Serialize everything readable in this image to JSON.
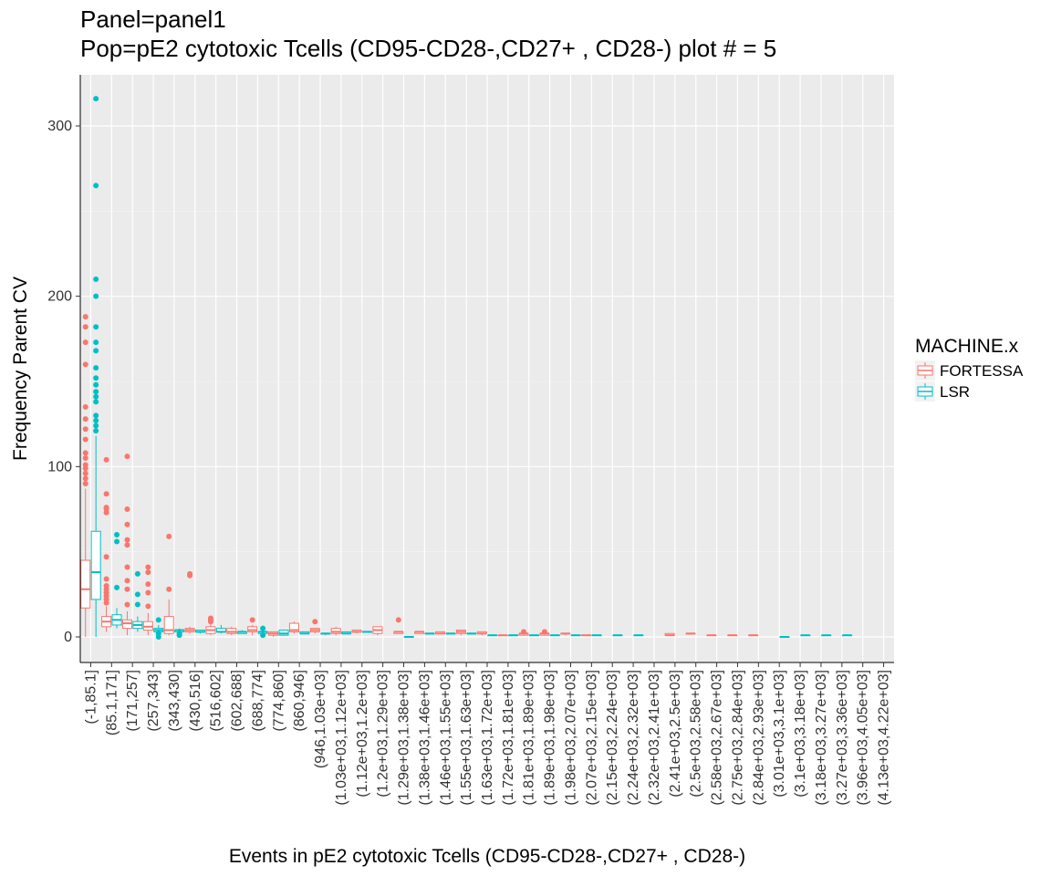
{
  "chart_data": {
    "type": "boxplot",
    "title_line1": "Panel=panel1",
    "title_line2": "Pop=pE2 cytotoxic Tcells (CD95-CD28-,CD27+ , CD28-) plot # = 5",
    "xlabel": "Events in pE2 cytotoxic Tcells (CD95-CD28-,CD27+ , CD28-)",
    "ylabel": "Frequency Parent CV",
    "ylim": [
      -15,
      330
    ],
    "y_ticks": [
      0,
      100,
      200,
      300
    ],
    "grid": true,
    "legend": {
      "title": "MACHINE.x",
      "position": "right",
      "entries": [
        {
          "name": "FORTESSA",
          "color": "#F8766D"
        },
        {
          "name": "LSR",
          "color": "#00BFC4"
        }
      ]
    },
    "categories": [
      "(-1,85.1]",
      "(85.1,171]",
      "(171,257]",
      "(257,343]",
      "(343,430]",
      "(430,516]",
      "(516,602]",
      "(602,688]",
      "(688,774]",
      "(774,860]",
      "(860,946]",
      "(946,1.03e+03]",
      "(1.03e+03,1.12e+03]",
      "(1.12e+03,1.2e+03]",
      "(1.2e+03,1.29e+03]",
      "(1.29e+03,1.38e+03]",
      "(1.38e+03,1.46e+03]",
      "(1.46e+03,1.55e+03]",
      "(1.55e+03,1.63e+03]",
      "(1.63e+03,1.72e+03]",
      "(1.72e+03,1.81e+03]",
      "(1.81e+03,1.89e+03]",
      "(1.89e+03,1.98e+03]",
      "(1.98e+03,2.07e+03]",
      "(2.07e+03,2.15e+03]",
      "(2.15e+03,2.24e+03]",
      "(2.24e+03,2.32e+03]",
      "(2.32e+03,2.41e+03]",
      "(2.41e+03,2.5e+03]",
      "(2.5e+03,2.58e+03]",
      "(2.58e+03,2.67e+03]",
      "(2.75e+03,2.84e+03]",
      "(2.84e+03,2.93e+03]",
      "(3.01e+03,3.1e+03]",
      "(3.1e+03,3.18e+03]",
      "(3.18e+03,3.27e+03]",
      "(3.27e+03,3.36e+03]",
      "(3.96e+03,4.05e+03]",
      "(4.13e+03,4.22e+03]"
    ],
    "series": [
      {
        "name": "FORTESSA",
        "color": "#F8766D",
        "boxes": [
          {
            "cat": 0,
            "min": 0,
            "q1": 17,
            "median": 28,
            "q3": 45,
            "max": 87,
            "outliers": [
              90,
              93,
              96,
              99,
              101,
              105,
              108,
              116,
              122,
              128,
              135,
              160,
              173,
              182,
              188
            ]
          },
          {
            "cat": 1,
            "min": 3,
            "q1": 6,
            "median": 9,
            "q3": 12,
            "max": 18,
            "outliers": [
              20,
              22,
              24,
              26,
              28,
              30,
              34,
              47,
              73,
              75,
              76,
              84,
              104
            ]
          },
          {
            "cat": 2,
            "min": 1,
            "q1": 5,
            "median": 8,
            "q3": 10,
            "max": 15,
            "outliers": [
              19,
              28,
              33,
              41,
              54,
              57,
              66,
              75,
              106
            ]
          },
          {
            "cat": 3,
            "min": 1,
            "q1": 4,
            "median": 6,
            "q3": 9,
            "max": 14,
            "outliers": [
              18,
              26,
              31,
              38,
              41
            ]
          },
          {
            "cat": 4,
            "min": 1,
            "q1": 2,
            "median": 4,
            "q3": 12,
            "max": 22,
            "outliers": [
              28,
              59
            ]
          },
          {
            "cat": 5,
            "min": 2,
            "q1": 3,
            "median": 4,
            "q3": 5,
            "max": 6,
            "outliers": [
              36,
              37
            ]
          },
          {
            "cat": 6,
            "min": 1,
            "q1": 2,
            "median": 4,
            "q3": 6,
            "max": 8,
            "outliers": [
              9,
              10,
              11
            ]
          },
          {
            "cat": 7,
            "min": 1,
            "q1": 2,
            "median": 3,
            "q3": 5,
            "max": 6,
            "outliers": []
          },
          {
            "cat": 8,
            "min": 1,
            "q1": 3,
            "median": 4,
            "q3": 6,
            "max": 7,
            "outliers": [
              10
            ]
          },
          {
            "cat": 9,
            "min": 0,
            "q1": 1,
            "median": 2,
            "q3": 3,
            "max": 3,
            "outliers": []
          },
          {
            "cat": 10,
            "min": 2,
            "q1": 3,
            "median": 4,
            "q3": 8,
            "max": 9,
            "outliers": []
          },
          {
            "cat": 11,
            "min": 2,
            "q1": 3,
            "median": 4,
            "q3": 5,
            "max": 5,
            "outliers": [
              9
            ]
          },
          {
            "cat": 12,
            "min": 1,
            "q1": 2,
            "median": 3,
            "q3": 5,
            "max": 6,
            "outliers": []
          },
          {
            "cat": 13,
            "min": 2,
            "q1": 3,
            "median": 3,
            "q3": 4,
            "max": 4,
            "outliers": []
          },
          {
            "cat": 14,
            "min": 1,
            "q1": 2,
            "median": 4,
            "q3": 6,
            "max": 6,
            "outliers": []
          },
          {
            "cat": 15,
            "min": 2,
            "q1": 2,
            "median": 3,
            "q3": 3,
            "max": 3,
            "outliers": [
              10
            ]
          },
          {
            "cat": 16,
            "min": 2,
            "q1": 2,
            "median": 3,
            "q3": 3,
            "max": 3,
            "outliers": []
          },
          {
            "cat": 17,
            "min": 2,
            "q1": 2,
            "median": 2,
            "q3": 3,
            "max": 3,
            "outliers": []
          },
          {
            "cat": 18,
            "min": 1,
            "q1": 2,
            "median": 3,
            "q3": 4,
            "max": 4,
            "outliers": []
          },
          {
            "cat": 19,
            "min": 1,
            "q1": 2,
            "median": 2,
            "q3": 3,
            "max": 3,
            "outliers": []
          },
          {
            "cat": 20,
            "min": 1,
            "q1": 1,
            "median": 1,
            "q3": 1,
            "max": 1,
            "outliers": []
          },
          {
            "cat": 21,
            "min": 1,
            "q1": 1,
            "median": 2,
            "q3": 2,
            "max": 2,
            "outliers": [
              3
            ]
          },
          {
            "cat": 22,
            "min": 1,
            "q1": 1,
            "median": 2,
            "q3": 2,
            "max": 2,
            "outliers": [
              3
            ]
          },
          {
            "cat": 23,
            "min": 1,
            "q1": 2,
            "median": 2,
            "q3": 2,
            "max": 2,
            "outliers": []
          },
          {
            "cat": 24,
            "min": 1,
            "q1": 1,
            "median": 1,
            "q3": 1,
            "max": 1,
            "outliers": []
          },
          {
            "cat": 28,
            "min": 1,
            "q1": 1,
            "median": 1,
            "q3": 2,
            "max": 2,
            "outliers": []
          },
          {
            "cat": 29,
            "min": 2,
            "q1": 2,
            "median": 2,
            "q3": 2,
            "max": 2,
            "outliers": []
          },
          {
            "cat": 30,
            "min": 1,
            "q1": 1,
            "median": 1,
            "q3": 1,
            "max": 1,
            "outliers": []
          },
          {
            "cat": 31,
            "min": 1,
            "q1": 1,
            "median": 1,
            "q3": 1,
            "max": 1,
            "outliers": []
          },
          {
            "cat": 32,
            "min": 1,
            "q1": 1,
            "median": 1,
            "q3": 1,
            "max": 1,
            "outliers": []
          }
        ]
      },
      {
        "name": "LSR",
        "color": "#00BFC4",
        "boxes": [
          {
            "cat": 0,
            "min": 0,
            "q1": 22,
            "median": 38,
            "q3": 62,
            "max": 118,
            "outliers": [
              121,
              124,
              127,
              130,
              138,
              141,
              144,
              148,
              152,
              158,
              168,
              173,
              182,
              200,
              210,
              265,
              316
            ]
          },
          {
            "cat": 1,
            "min": 5,
            "q1": 7,
            "median": 10,
            "q3": 13,
            "max": 17,
            "outliers": [
              29,
              56,
              60
            ]
          },
          {
            "cat": 2,
            "min": 3,
            "q1": 5,
            "median": 7,
            "q3": 9,
            "max": 12,
            "outliers": [
              19,
              25,
              37
            ]
          },
          {
            "cat": 3,
            "min": 1,
            "q1": 3,
            "median": 4,
            "q3": 5,
            "max": 7,
            "outliers": [
              0,
              2,
              10
            ]
          },
          {
            "cat": 4,
            "min": 2,
            "q1": 3,
            "median": 4,
            "q3": 4,
            "max": 5,
            "outliers": [
              1,
              2
            ]
          },
          {
            "cat": 5,
            "min": 2,
            "q1": 3,
            "median": 3,
            "q3": 4,
            "max": 4,
            "outliers": []
          },
          {
            "cat": 6,
            "min": 2,
            "q1": 3,
            "median": 3,
            "q3": 5,
            "max": 7,
            "outliers": []
          },
          {
            "cat": 7,
            "min": 2,
            "q1": 2,
            "median": 3,
            "q3": 3,
            "max": 4,
            "outliers": []
          },
          {
            "cat": 8,
            "min": 1,
            "q1": 2,
            "median": 3,
            "q3": 3,
            "max": 4,
            "outliers": [
              1,
              5
            ]
          },
          {
            "cat": 9,
            "min": 1,
            "q1": 1,
            "median": 2,
            "q3": 4,
            "max": 4,
            "outliers": []
          },
          {
            "cat": 10,
            "min": 2,
            "q1": 2,
            "median": 2,
            "q3": 3,
            "max": 3,
            "outliers": []
          },
          {
            "cat": 11,
            "min": 1,
            "q1": 2,
            "median": 2,
            "q3": 2,
            "max": 2,
            "outliers": []
          },
          {
            "cat": 12,
            "min": 2,
            "q1": 2,
            "median": 2,
            "q3": 3,
            "max": 3,
            "outliers": []
          },
          {
            "cat": 13,
            "min": 3,
            "q1": 3,
            "median": 3,
            "q3": 3,
            "max": 3,
            "outliers": []
          },
          {
            "cat": 15,
            "min": 0,
            "q1": 0,
            "median": 0,
            "q3": 0,
            "max": 0,
            "outliers": []
          },
          {
            "cat": 16,
            "min": 2,
            "q1": 2,
            "median": 2,
            "q3": 2,
            "max": 2,
            "outliers": []
          },
          {
            "cat": 17,
            "min": 2,
            "q1": 2,
            "median": 2,
            "q3": 2,
            "max": 2,
            "outliers": []
          },
          {
            "cat": 18,
            "min": 2,
            "q1": 2,
            "median": 2,
            "q3": 2,
            "max": 2,
            "outliers": []
          },
          {
            "cat": 19,
            "min": 1,
            "q1": 1,
            "median": 1,
            "q3": 1,
            "max": 1,
            "outliers": []
          },
          {
            "cat": 20,
            "min": 1,
            "q1": 1,
            "median": 1,
            "q3": 1,
            "max": 1,
            "outliers": []
          },
          {
            "cat": 21,
            "min": 1,
            "q1": 1,
            "median": 1,
            "q3": 1,
            "max": 1,
            "outliers": []
          },
          {
            "cat": 22,
            "min": 1,
            "q1": 1,
            "median": 1,
            "q3": 1,
            "max": 1,
            "outliers": []
          },
          {
            "cat": 23,
            "min": 1,
            "q1": 1,
            "median": 1,
            "q3": 1,
            "max": 1,
            "outliers": []
          },
          {
            "cat": 24,
            "min": 1,
            "q1": 1,
            "median": 1,
            "q3": 1,
            "max": 1,
            "outliers": []
          },
          {
            "cat": 25,
            "min": 1,
            "q1": 1,
            "median": 1,
            "q3": 1,
            "max": 1,
            "outliers": []
          },
          {
            "cat": 26,
            "min": 1,
            "q1": 1,
            "median": 1,
            "q3": 1,
            "max": 1,
            "outliers": []
          },
          {
            "cat": 33,
            "min": 0,
            "q1": 0,
            "median": 0,
            "q3": 0,
            "max": 0,
            "outliers": []
          },
          {
            "cat": 34,
            "min": 1,
            "q1": 1,
            "median": 1,
            "q3": 1,
            "max": 1,
            "outliers": []
          },
          {
            "cat": 35,
            "min": 1,
            "q1": 1,
            "median": 1,
            "q3": 1,
            "max": 1,
            "outliers": []
          },
          {
            "cat": 36,
            "min": 1,
            "q1": 1,
            "median": 1,
            "q3": 1,
            "max": 1,
            "outliers": []
          }
        ]
      }
    ]
  }
}
